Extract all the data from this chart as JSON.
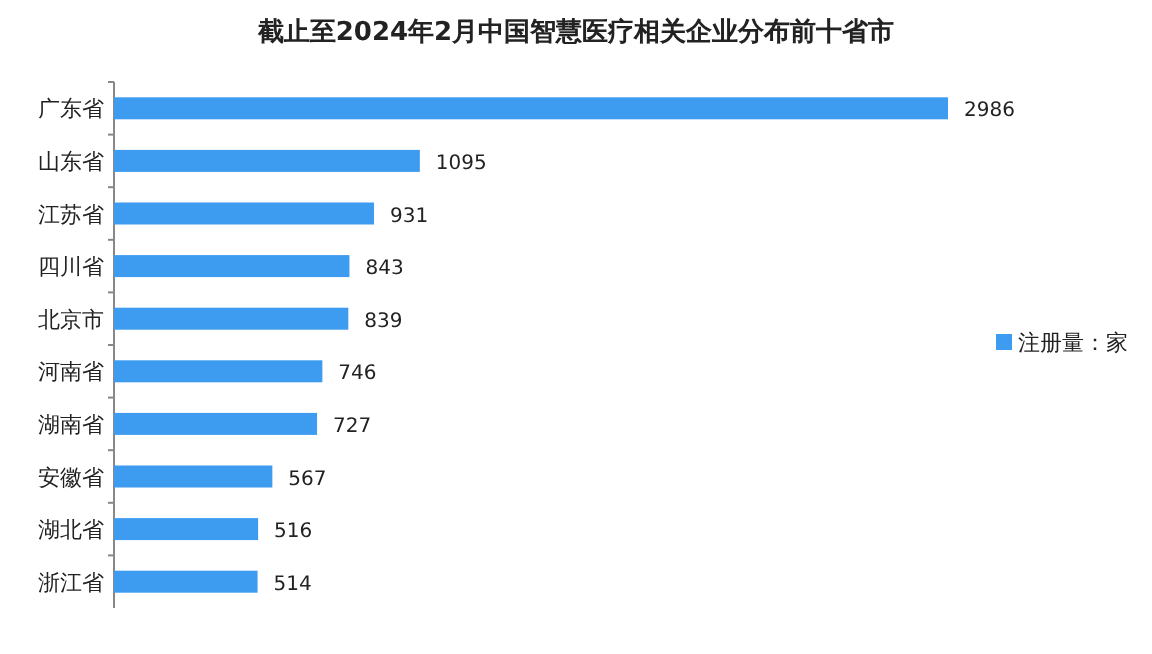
{
  "chart_data": {
    "type": "bar",
    "orientation": "horizontal",
    "title": "截止至2024年2月中国智慧医疗相关企业分布前十省市",
    "categories": [
      "广东省",
      "山东省",
      "江苏省",
      "四川省",
      "北京市",
      "河南省",
      "湖南省",
      "安徽省",
      "湖北省",
      "浙江省"
    ],
    "series": [
      {
        "name": "注册量：家",
        "color": "#3d9cf0",
        "values": [
          2986,
          1095,
          931,
          843,
          839,
          746,
          727,
          567,
          516,
          514
        ]
      }
    ],
    "data_labels": true,
    "legend": "right"
  }
}
